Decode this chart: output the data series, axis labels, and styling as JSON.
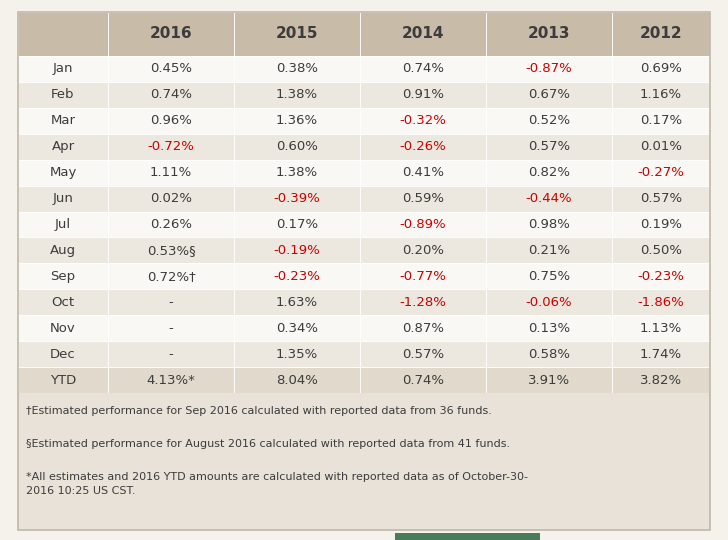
{
  "years": [
    "2016",
    "2015",
    "2014",
    "2013",
    "2012"
  ],
  "months": [
    "Jan",
    "Feb",
    "Mar",
    "Apr",
    "May",
    "Jun",
    "Jul",
    "Aug",
    "Sep",
    "Oct",
    "Nov",
    "Dec",
    "YTD"
  ],
  "values": [
    [
      "0.45%",
      "0.38%",
      "0.74%",
      "-0.87%",
      "0.69%"
    ],
    [
      "0.74%",
      "1.38%",
      "0.91%",
      "0.67%",
      "1.16%"
    ],
    [
      "0.96%",
      "1.36%",
      "-0.32%",
      "0.52%",
      "0.17%"
    ],
    [
      "-0.72%",
      "0.60%",
      "-0.26%",
      "0.57%",
      "0.01%"
    ],
    [
      "1.11%",
      "1.38%",
      "0.41%",
      "0.82%",
      "-0.27%"
    ],
    [
      "0.02%",
      "-0.39%",
      "0.59%",
      "-0.44%",
      "0.57%"
    ],
    [
      "0.26%",
      "0.17%",
      "-0.89%",
      "0.98%",
      "0.19%"
    ],
    [
      "0.53%§",
      "-0.19%",
      "0.20%",
      "0.21%",
      "0.50%"
    ],
    [
      "0.72%†",
      "-0.23%",
      "-0.77%",
      "0.75%",
      "-0.23%"
    ],
    [
      "-",
      "1.63%",
      "-1.28%",
      "-0.06%",
      "-1.86%"
    ],
    [
      "-",
      "0.34%",
      "0.87%",
      "0.13%",
      "1.13%"
    ],
    [
      "-",
      "1.35%",
      "0.57%",
      "0.58%",
      "1.74%"
    ],
    [
      "4.13%*",
      "8.04%",
      "0.74%",
      "3.91%",
      "3.82%"
    ]
  ],
  "red_values": [
    [
      false,
      false,
      false,
      true,
      false
    ],
    [
      false,
      false,
      false,
      false,
      false
    ],
    [
      false,
      false,
      true,
      false,
      false
    ],
    [
      true,
      false,
      true,
      false,
      false
    ],
    [
      false,
      false,
      false,
      false,
      true
    ],
    [
      false,
      true,
      false,
      true,
      false
    ],
    [
      false,
      false,
      true,
      false,
      false
    ],
    [
      false,
      true,
      false,
      false,
      false
    ],
    [
      false,
      true,
      true,
      false,
      true
    ],
    [
      false,
      false,
      true,
      true,
      true
    ],
    [
      false,
      false,
      false,
      false,
      false
    ],
    [
      false,
      false,
      false,
      false,
      false
    ],
    [
      false,
      false,
      false,
      false,
      false
    ]
  ],
  "header_bg": "#c8bca8",
  "row_bg_even": "#ede8df",
  "row_bg_odd": "#faf8f5",
  "ytd_bg": "#e0d9cc",
  "text_dark": "#3c3c3c",
  "text_red": "#cc0000",
  "text_green": "#4a7c59",
  "outer_bg": "#f5f2eb",
  "footnote_bg": "#e8e2d8",
  "border_color": "#c0b8a8",
  "footnote1": "†Estimated performance for Sep 2016 calculated with reported data from 36 funds.",
  "footnote2": "§Estimated performance for August 2016 calculated with reported data from 41 funds.",
  "footnote3": "*All estimates and 2016 YTD amounts are calculated with reported data as of October-30-\n2016 10:25 US CST."
}
